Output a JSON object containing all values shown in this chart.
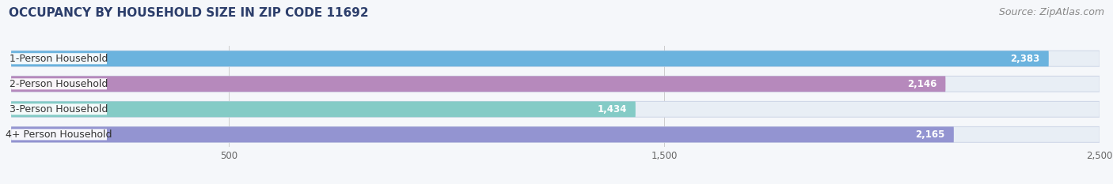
{
  "title": "OCCUPANCY BY HOUSEHOLD SIZE IN ZIP CODE 11692",
  "source": "Source: ZipAtlas.com",
  "categories": [
    "1-Person Household",
    "2-Person Household",
    "3-Person Household",
    "4+ Person Household"
  ],
  "values": [
    2383,
    2146,
    1434,
    2165
  ],
  "bar_colors": [
    "#5aabdb",
    "#b07bb5",
    "#76c7c0",
    "#8888cc"
  ],
  "bar_bg_color": "#e8eef5",
  "xlim": [
    0,
    2500
  ],
  "xticks": [
    500,
    1500,
    2500
  ],
  "title_fontsize": 11,
  "source_fontsize": 9,
  "label_fontsize": 9,
  "value_fontsize": 8.5,
  "background_color": "#f5f7fa",
  "label_text_color": "#333333",
  "value_text_color": "#ffffff"
}
